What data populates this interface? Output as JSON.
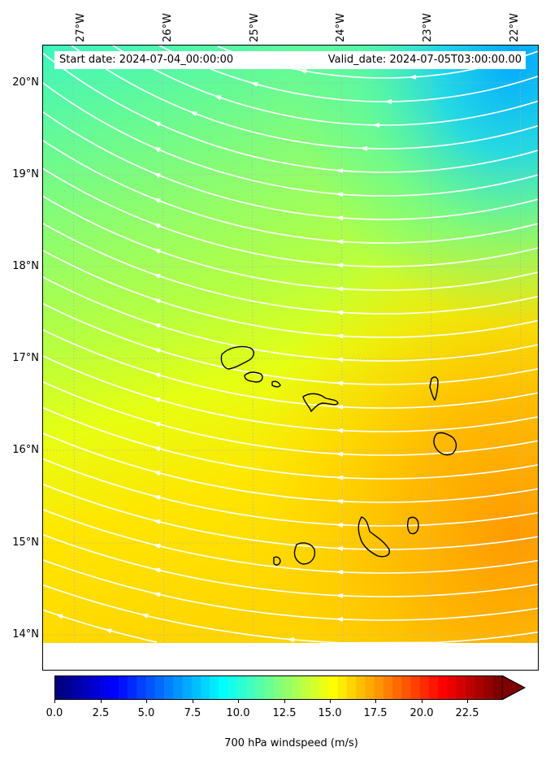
{
  "header": {
    "start_date": "Start date: 2024-07-04_00:00:00",
    "valid_date": "Valid_date: 2024-07-05T03:00:00.00"
  },
  "longitude_labels": [
    "27°W",
    "26°W",
    "25°W",
    "24°W",
    "23°W",
    "22°W"
  ],
  "latitude_labels": [
    "20°N",
    "19°N",
    "18°N",
    "17°N",
    "16°N",
    "15°N",
    "14°N"
  ],
  "colorbar": {
    "title": "700 hPa windspeed (m/s)",
    "tick_labels": [
      "0.0",
      "2.5",
      "5.0",
      "7.5",
      "10.0",
      "12.5",
      "15.0",
      "17.5",
      "20.0",
      "22.5"
    ],
    "colormap": "jet",
    "extend": "max"
  },
  "colors": {
    "streamlines": "#ffffff",
    "coastline": "#000000",
    "gridlines": "#b0b0b0"
  },
  "icons": [
    "cape-verde-islands-outline"
  ]
}
